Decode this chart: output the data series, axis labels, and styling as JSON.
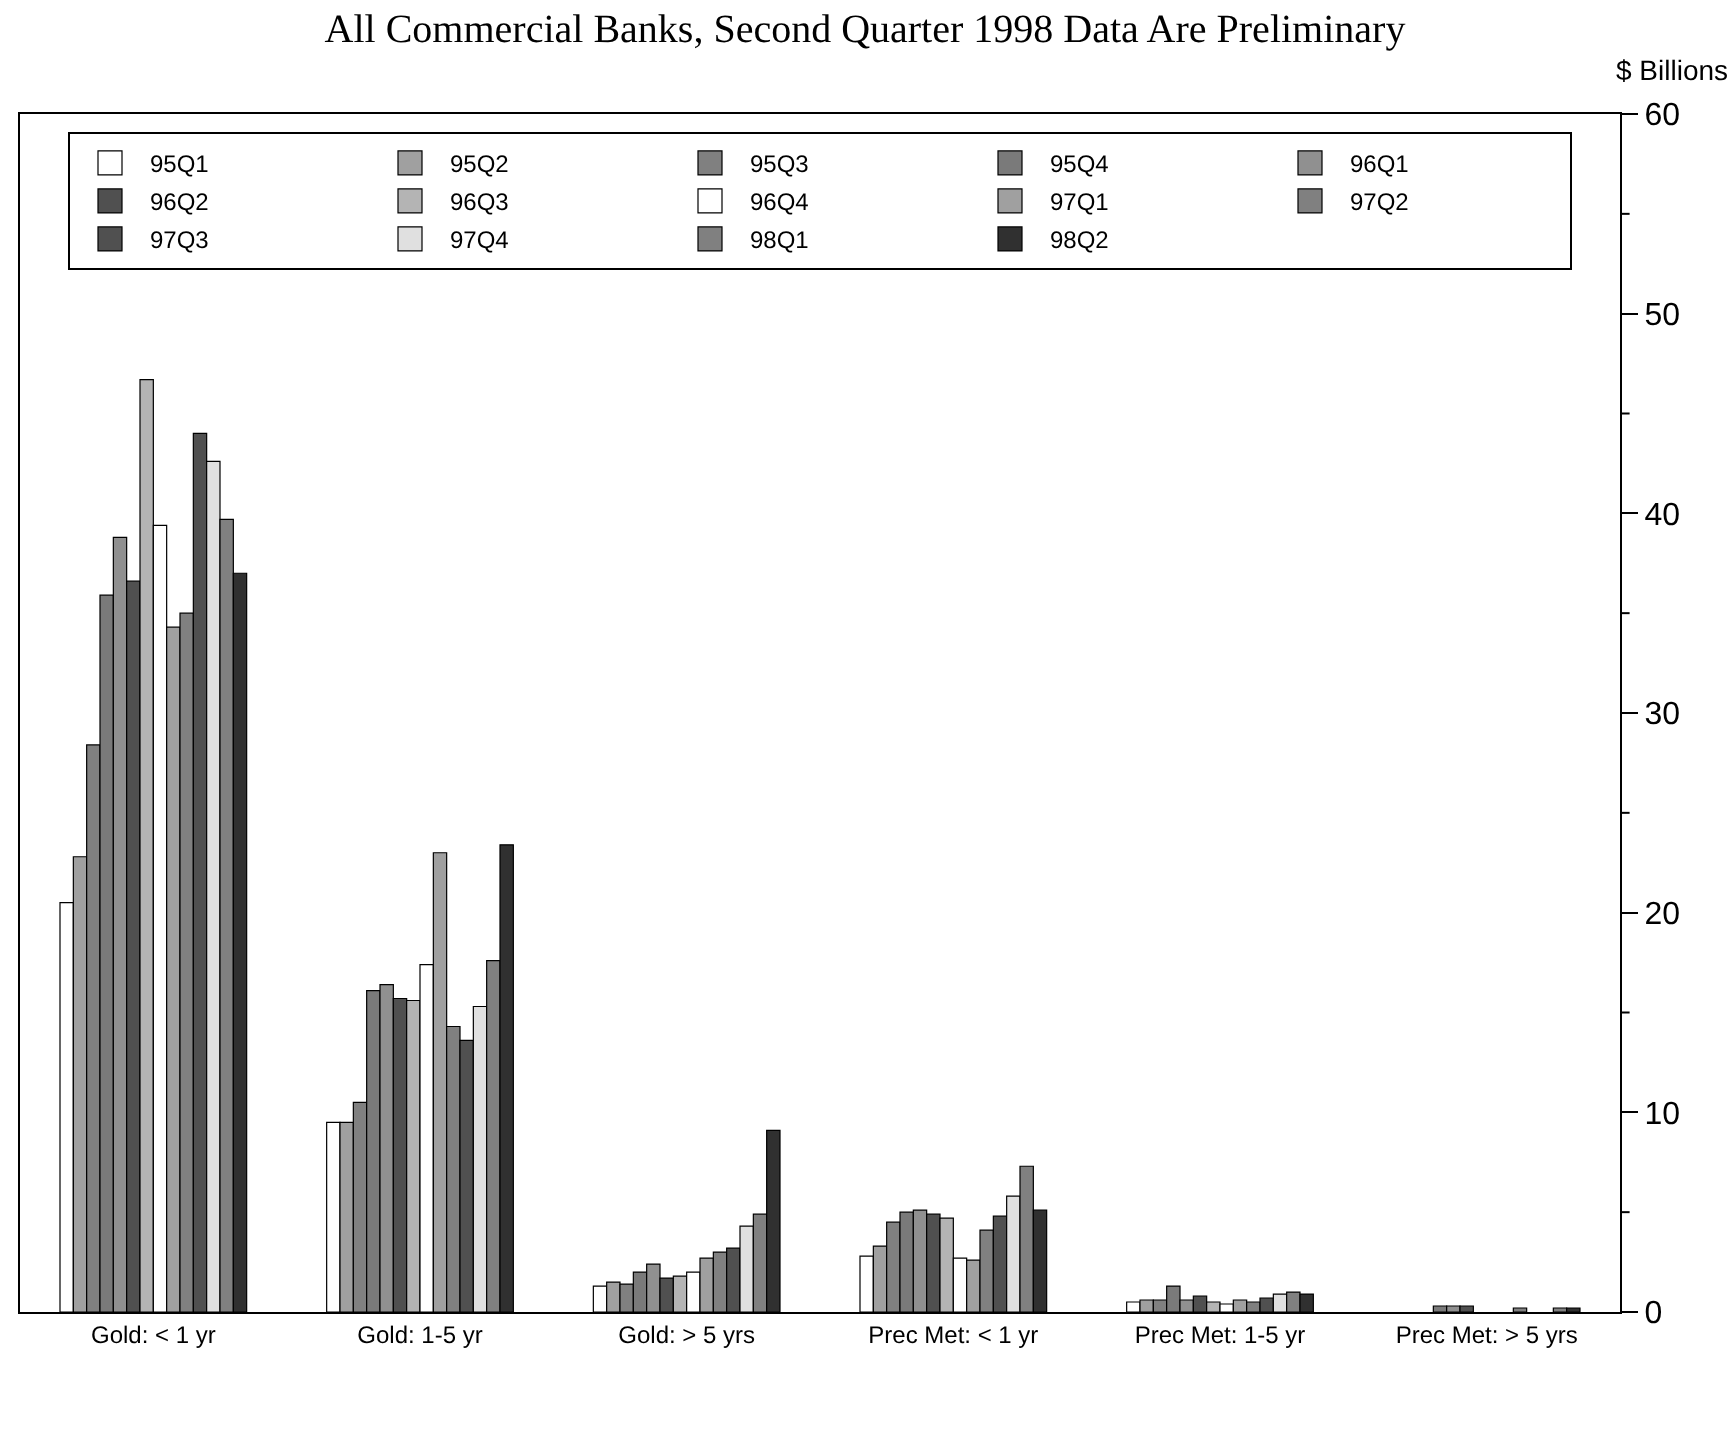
{
  "chart_data": {
    "type": "bar",
    "title": "All Commercial Banks, Second Quarter 1998 Data Are Preliminary",
    "ylabel": "$ Billions",
    "categories": [
      "Gold: < 1 yr",
      "Gold: 1-5 yr",
      "Gold: > 5 yrs",
      "Prec Met: < 1 yr",
      "Prec Met: 1-5 yr",
      "Prec Met: > 5 yrs"
    ],
    "series": [
      {
        "name": "95Q1",
        "color": "#ffffff",
        "values": [
          20.5,
          9.5,
          1.3,
          2.8,
          0.5,
          null
        ]
      },
      {
        "name": "95Q2",
        "color": "#a0a0a0",
        "values": [
          22.8,
          9.5,
          1.5,
          3.3,
          0.6,
          null
        ]
      },
      {
        "name": "95Q3",
        "color": "#808080",
        "values": [
          28.4,
          10.5,
          1.4,
          4.5,
          0.6,
          null
        ]
      },
      {
        "name": "95Q4",
        "color": "#7a7a7a",
        "values": [
          35.9,
          16.1,
          2.0,
          5.0,
          1.3,
          0.3
        ]
      },
      {
        "name": "96Q1",
        "color": "#909090",
        "values": [
          38.8,
          16.4,
          2.4,
          5.1,
          0.6,
          0.3
        ]
      },
      {
        "name": "96Q2",
        "color": "#505050",
        "values": [
          36.6,
          15.7,
          1.7,
          4.9,
          0.8,
          0.3
        ]
      },
      {
        "name": "96Q3",
        "color": "#b4b4b4",
        "values": [
          46.7,
          15.6,
          1.8,
          4.7,
          0.5,
          null
        ]
      },
      {
        "name": "96Q4",
        "color": "#ffffff",
        "values": [
          39.4,
          17.4,
          2.0,
          2.7,
          0.4,
          null
        ]
      },
      {
        "name": "97Q1",
        "color": "#a0a0a0",
        "values": [
          34.3,
          23.0,
          2.7,
          2.6,
          0.6,
          null
        ]
      },
      {
        "name": "97Q2",
        "color": "#808080",
        "values": [
          35.0,
          14.3,
          3.0,
          4.1,
          0.5,
          0.2
        ]
      },
      {
        "name": "97Q3",
        "color": "#505050",
        "values": [
          44.0,
          13.6,
          3.2,
          4.8,
          0.7,
          null
        ]
      },
      {
        "name": "97Q4",
        "color": "#e0e0e0",
        "values": [
          42.6,
          15.3,
          4.3,
          5.8,
          0.9,
          null
        ]
      },
      {
        "name": "98Q1",
        "color": "#808080",
        "values": [
          39.7,
          17.6,
          4.9,
          7.3,
          1.0,
          0.2
        ]
      },
      {
        "name": "98Q2",
        "color": "#303030",
        "values": [
          37.0,
          23.4,
          9.1,
          5.1,
          0.9,
          0.2
        ]
      }
    ],
    "ylim": [
      0,
      60
    ],
    "yticks": [
      0,
      {
        "value": 5,
        "label": null
      },
      10,
      {
        "value": 15,
        "label": null
      },
      20,
      {
        "value": 25,
        "label": null
      },
      30,
      {
        "value": 35,
        "label": null
      },
      40,
      {
        "value": 45,
        "label": null
      },
      50,
      {
        "value": 55,
        "label": null
      },
      60
    ],
    "legend": "top"
  }
}
